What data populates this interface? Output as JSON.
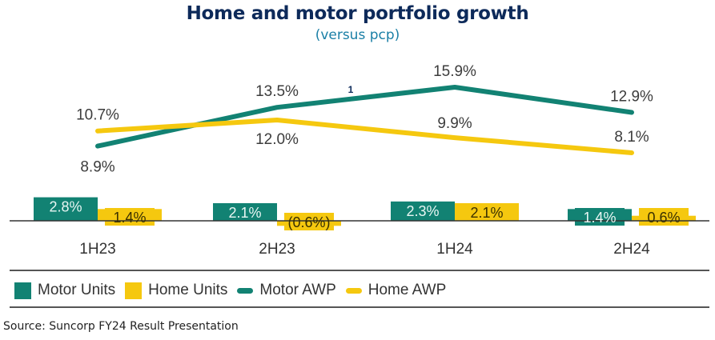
{
  "header": {
    "title": "Home and motor portfolio growth",
    "subtitle": "(versus pcp)"
  },
  "chart_data": {
    "type": "bar",
    "title": "Home and motor portfolio growth",
    "subtitle": "(versus pcp)",
    "xlabel": "",
    "ylabel": "",
    "categories": [
      "1H23",
      "2H23",
      "1H24",
      "2H24"
    ],
    "series": [
      {
        "name": "Motor Units",
        "type": "bar",
        "color": "#128273",
        "values": [
          2.8,
          2.1,
          2.3,
          1.4
        ],
        "labels": [
          "2.8%",
          "2.1%",
          "2.3%",
          "1.4%"
        ]
      },
      {
        "name": "Home Units",
        "type": "bar",
        "color": "#f5c80f",
        "values": [
          1.4,
          -0.6,
          2.1,
          0.6
        ],
        "labels": [
          "1.4%",
          "(0.6%)",
          "2.1%",
          "0.6%"
        ]
      },
      {
        "name": "Motor AWP",
        "type": "line",
        "color": "#128273",
        "values": [
          8.9,
          13.5,
          15.9,
          12.9
        ],
        "labels": [
          "8.9%",
          "13.5%",
          "15.9%",
          "12.9%"
        ]
      },
      {
        "name": "Home AWP",
        "type": "line",
        "color": "#f5c80f",
        "values": [
          10.7,
          12.0,
          9.9,
          8.1
        ],
        "labels": [
          "10.7%",
          "12.0%",
          "9.9%",
          "8.1%"
        ]
      }
    ],
    "annotations": [
      "1"
    ],
    "grid": false,
    "legend_position": "bottom"
  },
  "legend": [
    {
      "label": "Motor Units",
      "kind": "box",
      "color": "#128273"
    },
    {
      "label": "Home Units",
      "kind": "box",
      "color": "#f5c80f"
    },
    {
      "label": "Motor AWP",
      "kind": "line",
      "color": "#128273"
    },
    {
      "label": "Home AWP",
      "kind": "line",
      "color": "#f5c80f"
    }
  ],
  "footnote_marker": "1",
  "source": "Source: Suncorp FY24 Result Presentation",
  "colors": {
    "motor": "#128273",
    "home": "#f5c80f",
    "title": "#0d2a5a",
    "subtitle": "#1a7fa6",
    "axis": "#333333"
  }
}
